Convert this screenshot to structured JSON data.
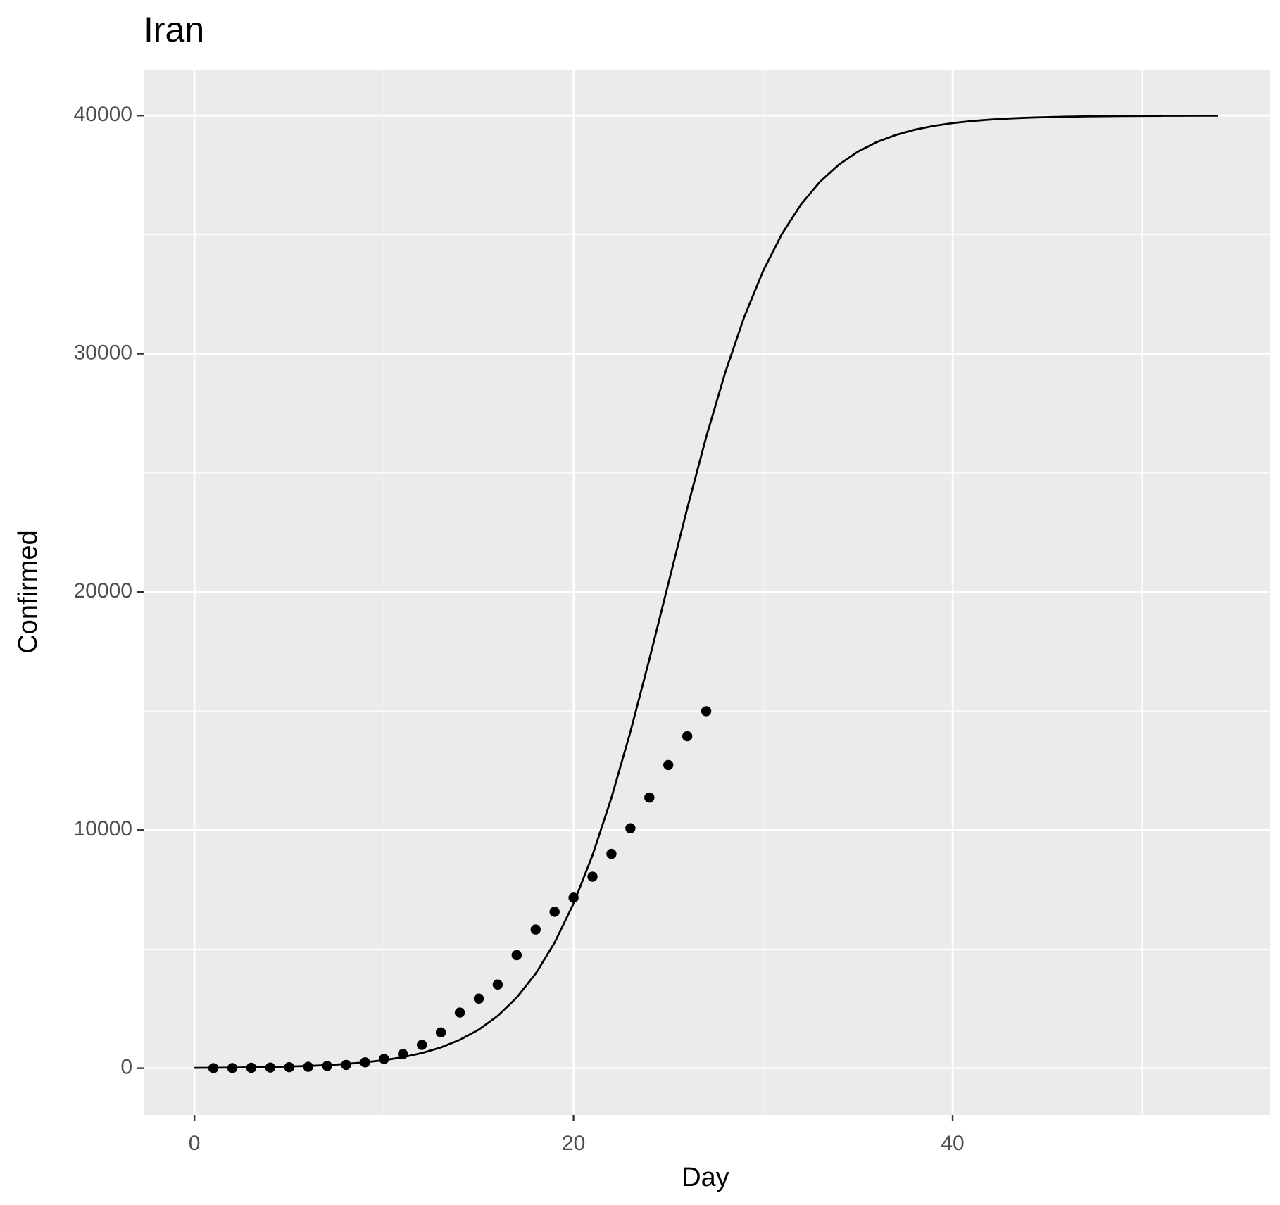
{
  "chart_data": {
    "type": "scatter",
    "title": "Iran",
    "x_label": "Day",
    "y_label": "Confirmed",
    "xlim": [
      -2.68,
      56.75
    ],
    "ylim": [
      -1962,
      41928
    ],
    "xticks": [
      0,
      20,
      40
    ],
    "yticks": [
      0,
      10000,
      20000,
      30000,
      40000
    ],
    "x_minor_grid": [
      10,
      30,
      50
    ],
    "y_minor_grid": [
      5000,
      15000,
      25000,
      35000
    ],
    "grid": true,
    "series": [
      {
        "mark": "point",
        "color": "#000000",
        "x": [
          1,
          2,
          3,
          4,
          5,
          6,
          7,
          8,
          9,
          10,
          11,
          12,
          13,
          14,
          15,
          16,
          17,
          18,
          19,
          20,
          21,
          22,
          23,
          24,
          25,
          26,
          27
        ],
        "values": [
          2,
          5,
          18,
          28,
          43,
          61,
          95,
          139,
          245,
          388,
          593,
          978,
          1501,
          2336,
          2922,
          3513,
          4747,
          5823,
          6566,
          7161,
          8042,
          9000,
          10075,
          11364,
          12729,
          13938,
          14991
        ]
      },
      {
        "mark": "line",
        "color": "#000000",
        "x": [
          0,
          1,
          2,
          3,
          4,
          5,
          6,
          7,
          8,
          9,
          10,
          11,
          12,
          13,
          14,
          15,
          16,
          17,
          18,
          19,
          20,
          21,
          22,
          23,
          24,
          25,
          26,
          27,
          28,
          29,
          30,
          31,
          32,
          33,
          34,
          35,
          36,
          37,
          38,
          39,
          40,
          41,
          42,
          43,
          44,
          45,
          46,
          47,
          48,
          49,
          50,
          51,
          52,
          53,
          54
        ],
        "values": [
          14,
          19,
          26,
          36,
          50,
          69,
          94,
          130,
          179,
          246,
          338,
          463,
          635,
          870,
          1189,
          1619,
          2195,
          2963,
          3969,
          5269,
          6913,
          8939,
          11354,
          14124,
          17167,
          20346,
          23511,
          26506,
          29204,
          31537,
          33473,
          35039,
          36271,
          37222,
          37944,
          38486,
          38889,
          39187,
          39407,
          39567,
          39685,
          39771,
          39833,
          39879,
          39912,
          39936,
          39953,
          39966,
          39975,
          39982,
          39987,
          39991,
          39993,
          39995,
          39996
        ]
      }
    ]
  }
}
